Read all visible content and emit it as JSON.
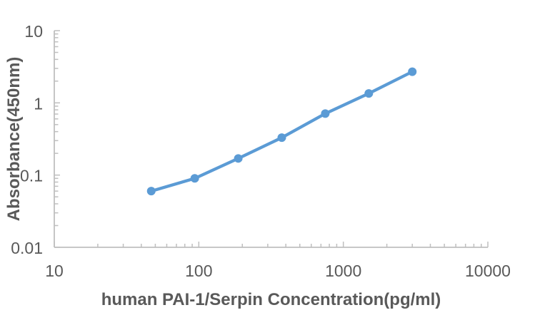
{
  "page": {
    "background": "#ffffff"
  },
  "chart_data": {
    "type": "line",
    "title": "",
    "xlabel": "human PAI-1/Serpin Concentration(pg/ml)",
    "ylabel": "Absorbance(450nm)",
    "x_scale": "log",
    "y_scale": "log",
    "xlim": [
      10,
      10000
    ],
    "ylim": [
      0.01,
      10
    ],
    "x_tick_values": [
      10,
      100,
      1000,
      10000
    ],
    "x_tick_labels": [
      "10",
      "100",
      "1000",
      "10000"
    ],
    "y_tick_values": [
      0.01,
      0.1,
      1,
      10
    ],
    "y_tick_labels": [
      "0.01",
      "0.1",
      "1",
      "10"
    ],
    "grid": false,
    "legend": false,
    "series": [
      {
        "marker": "circle",
        "x": [
          46.875,
          93.75,
          187.5,
          375,
          750,
          1500,
          3000
        ],
        "y": [
          0.06,
          0.09,
          0.17,
          0.33,
          0.71,
          1.35,
          2.7
        ]
      }
    ],
    "colors": {
      "series": "#5b9bd5",
      "axis": "#bfbfbf",
      "tick_text": "#595959",
      "label_text": "#595959"
    }
  }
}
